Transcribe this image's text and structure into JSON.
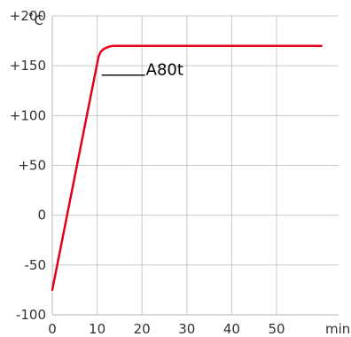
{
  "chart_data": {
    "type": "line",
    "xlabel": "min",
    "ylabel": "˚C",
    "xlim": [
      0,
      60
    ],
    "ylim": [
      -100,
      200
    ],
    "x_ticks": [
      0,
      10,
      20,
      30,
      40,
      50
    ],
    "x_tick_labels": [
      "0",
      "10",
      "20",
      "30",
      "40",
      "50"
    ],
    "y_ticks": [
      -100,
      -50,
      0,
      50,
      100,
      150,
      200
    ],
    "y_tick_labels": [
      "-100",
      "-50",
      "0",
      "+50",
      "+100",
      "+150",
      "+200"
    ],
    "grid": true,
    "colors": {
      "series": "#e3001b",
      "grid": "#c8c8c8",
      "axis": "#b4b4b4"
    },
    "series": [
      {
        "name": "A80t",
        "x": [
          0,
          9.9,
          10.3,
          10.8,
          11.5,
          12.5,
          13.5,
          60
        ],
        "y": [
          -75,
          150,
          159,
          164,
          167,
          169,
          170,
          170
        ],
        "label_anchor": [
          11,
          170
        ]
      }
    ]
  }
}
